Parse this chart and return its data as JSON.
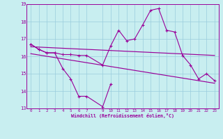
{
  "xlabel": "Windchill (Refroidissement éolien,°C)",
  "bg_color": "#c8eef0",
  "grid_color": "#99ccdd",
  "line_color": "#990099",
  "ylim": [
    13,
    19
  ],
  "xlim": [
    -0.5,
    23.5
  ],
  "yticks": [
    13,
    14,
    15,
    16,
    17,
    18,
    19
  ],
  "xticks": [
    0,
    1,
    2,
    3,
    4,
    5,
    6,
    7,
    9,
    10,
    11,
    12,
    13,
    14,
    15,
    16,
    17,
    18,
    19,
    20,
    21,
    22,
    23
  ],
  "hours": [
    0,
    1,
    2,
    3,
    4,
    5,
    6,
    7,
    9,
    10,
    11,
    12,
    13,
    14,
    15,
    16,
    17,
    18,
    19,
    20,
    21,
    22,
    23
  ],
  "line1": [
    16.7,
    16.4,
    16.2,
    16.2,
    16.1,
    16.1,
    16.05,
    16.05,
    15.5,
    16.6,
    17.5,
    16.9,
    17.0,
    17.8,
    18.65,
    18.75,
    17.5,
    17.4,
    16.05,
    15.5,
    14.7,
    15.0,
    14.6
  ],
  "line2_hours": [
    0,
    1,
    2,
    3,
    4,
    5,
    6,
    7,
    9,
    10
  ],
  "line2": [
    16.7,
    16.4,
    16.2,
    16.2,
    15.3,
    14.7,
    13.7,
    13.7,
    13.1,
    14.4
  ],
  "line3_x": [
    0,
    23
  ],
  "line3_y": [
    16.55,
    16.05
  ],
  "line4_x": [
    0,
    23
  ],
  "line4_y": [
    16.15,
    14.45
  ]
}
